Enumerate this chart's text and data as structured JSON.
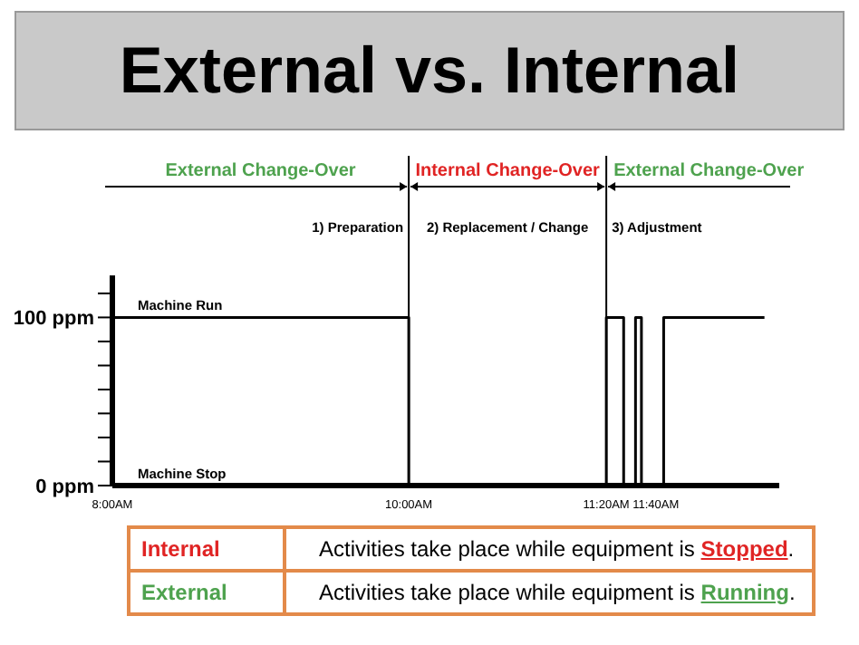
{
  "chart_data": {
    "type": "step",
    "title": "External vs. Internal",
    "x": [
      8,
      10,
      11.333,
      11.45,
      11.53,
      11.57,
      11.72,
      12.4
    ],
    "series": [
      {
        "color": "#000000",
        "values": [
          100,
          0,
          100,
          0,
          100,
          0,
          100,
          100
        ]
      }
    ],
    "xlim": [
      8,
      12.5
    ],
    "xticks": [
      {
        "value": 8,
        "label": "8:00AM"
      },
      {
        "value": 10,
        "label": "10:00AM"
      },
      {
        "value": 11.333,
        "label": "11:20AM"
      },
      {
        "value": 11.667,
        "label": "11:40AM"
      }
    ],
    "ylim": [
      0,
      125
    ],
    "yticks": [
      {
        "value": 0,
        "label": "0 ppm"
      },
      {
        "value": 14.3,
        "label": null
      },
      {
        "value": 28.6,
        "label": null
      },
      {
        "value": 42.9,
        "label": null
      },
      {
        "value": 57.1,
        "label": null
      },
      {
        "value": 71.4,
        "label": null
      },
      {
        "value": 85.7,
        "label": null
      },
      {
        "value": 100,
        "label": "100 ppm"
      },
      {
        "value": 114.3,
        "label": null
      }
    ],
    "ref_lines": [
      {
        "axis": "x",
        "value": 10,
        "label": null
      },
      {
        "axis": "x",
        "value": 11.333,
        "label": null
      }
    ],
    "grid": false,
    "legend": false,
    "marker": "none",
    "line_style": "solid",
    "annotations": [
      "External Change-Over",
      "Internal Change-Over",
      "External Change-Over",
      "1) Preparation",
      "2) Replacement / Change",
      "3) Adjustment",
      {
        "text": "Machine Run",
        "x": 8,
        "y": 100
      },
      "Machine Stop",
      "Internal",
      "Activities take place while equipment is Stopped.",
      "External",
      "Activities take place while equipment is Running."
    ]
  }
}
